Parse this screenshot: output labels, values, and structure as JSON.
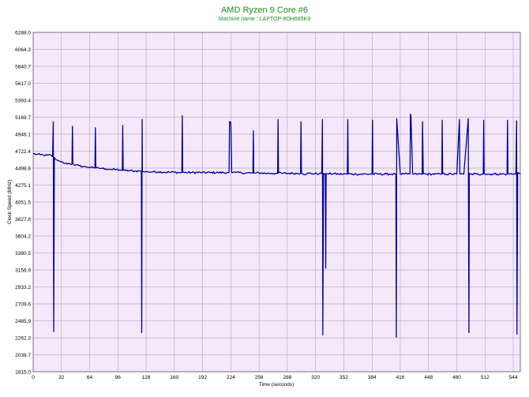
{
  "chart_data": {
    "type": "line",
    "title": "AMD Ryzen 9 Core #6",
    "subtitle": "Machine name : LAPTOP-8OH685K9",
    "xlabel": "Time (seconds)",
    "ylabel": "Clock Speed (MHz)",
    "xlim": [
      0,
      552
    ],
    "ylim": [
      1815.0,
      6288.0
    ],
    "x_ticks": [
      "0",
      "32",
      "64",
      "96",
      "128",
      "160",
      "192",
      "224",
      "256",
      "288",
      "320",
      "352",
      "384",
      "416",
      "448",
      "480",
      "512",
      "544"
    ],
    "y_ticks": [
      "6288.0",
      "6064.3",
      "5840.7",
      "5617.0",
      "5393.4",
      "5169.7",
      "4946.1",
      "4722.4",
      "4498.8",
      "4275.1",
      "4051.5",
      "3827.8",
      "3604.2",
      "3380.5",
      "3156.9",
      "2933.2",
      "2709.6",
      "2485.9",
      "2262.3",
      "2038.7",
      "1815.0"
    ],
    "grid": true,
    "colors": {
      "plot_background": "#f5e8fb",
      "grid": "#9a9aa6",
      "series": "#000099"
    },
    "series": [
      {
        "x": [
          0,
          4,
          8,
          12,
          16,
          20,
          22,
          22.8,
          23.3,
          24,
          25,
          26,
          28,
          30,
          32,
          36,
          40,
          44,
          44.5,
          45,
          45.5,
          48,
          52,
          56,
          60,
          64,
          68,
          70,
          70.5,
          71,
          71.5,
          74,
          78,
          82,
          86,
          90,
          94,
          98,
          101,
          101.5,
          102,
          102.5,
          105,
          110,
          115,
          120,
          122,
          122.6,
          123,
          123.5,
          123.8,
          124,
          126,
          130,
          136,
          142,
          148,
          154,
          160,
          165,
          168,
          168.5,
          169,
          169.5,
          172,
          180,
          190,
          200,
          210,
          220,
          222,
          222.5,
          224,
          225,
          226,
          230,
          236,
          242,
          248,
          249,
          249.5,
          250,
          252,
          258,
          264,
          270,
          276,
          277,
          277.5,
          278,
          282,
          288,
          294,
          300,
          303,
          303.5,
          304,
          306,
          312,
          318,
          324,
          327,
          327.8,
          328.2,
          329,
          330,
          331,
          331.5,
          332,
          334,
          340,
          346,
          352,
          356,
          356.5,
          357,
          360,
          366,
          372,
          378,
          384,
          384.5,
          385,
          390,
          400,
          406,
          410,
          411,
          411.5,
          412,
          416,
          420,
          424,
          427,
          427.5,
          428,
          430,
          436,
          440,
          440.8,
          441.2,
          442,
          446,
          452,
          458,
          462,
          463,
          463.5,
          464,
          468,
          474,
          480,
          483,
          483.5,
          484,
          488,
          493,
          493.8,
          494.2,
          495,
          497,
          502,
          508,
          510,
          510.5,
          511,
          514,
          520,
          526,
          534,
          537,
          537.5,
          538,
          540,
          544,
          547,
          547.8,
          548.2,
          549,
          552
        ],
        "y": [
          4690,
          4680,
          4675,
          4670,
          4668,
          4670,
          4650,
          5110,
          2345,
          4640,
          4620,
          4610,
          4600,
          4590,
          4580,
          4560,
          4560,
          4550,
          5050,
          4560,
          4550,
          4540,
          4530,
          4520,
          4515,
          4510,
          4505,
          4500,
          5030,
          4510,
          4500,
          4500,
          4495,
          4490,
          4485,
          4480,
          4480,
          4475,
          4470,
          5060,
          4475,
          4470,
          4465,
          4465,
          4460,
          4460,
          4460,
          4455,
          2330,
          5140,
          4460,
          4455,
          4450,
          4450,
          4450,
          4450,
          4445,
          4445,
          4445,
          4440,
          4440,
          4440,
          5190,
          4445,
          4440,
          4440,
          4440,
          4440,
          4440,
          4440,
          4440,
          5110,
          5105,
          4440,
          4440,
          4440,
          4435,
          4435,
          4435,
          4435,
          4990,
          4435,
          4435,
          4435,
          4430,
          4430,
          4430,
          4430,
          5140,
          4435,
          4430,
          4430,
          4430,
          4430,
          4430,
          5110,
          4430,
          4420,
          4430,
          4425,
          4425,
          4425,
          5140,
          2300,
          4430,
          4420,
          4425,
          3180,
          4425,
          4425,
          4425,
          4420,
          4420,
          4420,
          5140,
          4425,
          4420,
          4420,
          4420,
          4420,
          4420,
          5130,
          4420,
          4420,
          4420,
          4420,
          4420,
          4420,
          2270,
          5150,
          4420,
          4420,
          4420,
          4420,
          5210,
          5200,
          4420,
          4420,
          4420,
          4420,
          5110,
          4425,
          4420,
          4420,
          4420,
          4420,
          4420,
          5130,
          4425,
          4420,
          4420,
          4420,
          5140,
          4425,
          4420,
          4420,
          5150,
          2330,
          4430,
          4420,
          4420,
          4420,
          4420,
          4420,
          5130,
          4425,
          4420,
          4420,
          4420,
          4420,
          4420,
          5130,
          4425,
          4420,
          4420,
          4420,
          5120,
          2310,
          4440,
          4420
        ]
      }
    ]
  }
}
